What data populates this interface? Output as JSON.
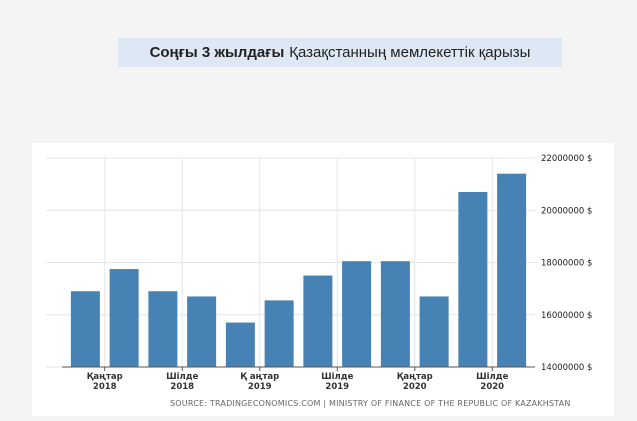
{
  "title": {
    "bold": "Соңғы 3 жылдағы",
    "rest": "Қазақстанның мемлекеттік қарызы"
  },
  "colors": {
    "bar": "#4682b4",
    "grid": "#e6e6e6",
    "title_bg": "#dde8f4"
  },
  "chart_data": {
    "type": "bar",
    "categories": [
      "",
      "",
      "",
      "",
      "",
      "",
      "",
      "",
      "",
      "",
      "",
      ""
    ],
    "values": [
      16900000,
      17750000,
      16900000,
      16700000,
      15700000,
      16550000,
      17500000,
      18050000,
      18050000,
      16700000,
      20700000,
      21400000
    ],
    "ylim": [
      14000000,
      22000000
    ],
    "yticks": [
      {
        "value": 14000000,
        "label": "14000000 $"
      },
      {
        "value": 16000000,
        "label": "16000000 $"
      },
      {
        "value": 18000000,
        "label": "18000000 $"
      },
      {
        "value": 20000000,
        "label": "20000000 $"
      },
      {
        "value": 22000000,
        "label": "22000000 $"
      }
    ],
    "xticks": [
      {
        "index": 0.5,
        "line1": "Қаңтар",
        "line2": "2018"
      },
      {
        "index": 2.5,
        "line1": "Шілде",
        "line2": "2018"
      },
      {
        "index": 4.5,
        "line1": "Қ аңтар",
        "line2": "2019"
      },
      {
        "index": 6.5,
        "line1": "Шілде",
        "line2": "2019"
      },
      {
        "index": 8.5,
        "line1": "Қаңтар",
        "line2": "2020"
      },
      {
        "index": 10.5,
        "line1": "Шілде",
        "line2": "2020"
      }
    ],
    "grid": true,
    "source": "SOURCE: TRADINGECONOMICS.COM | MINISTRY OF FINANCE OF THE REPUBLIC OF KAZAKHSTAN"
  }
}
